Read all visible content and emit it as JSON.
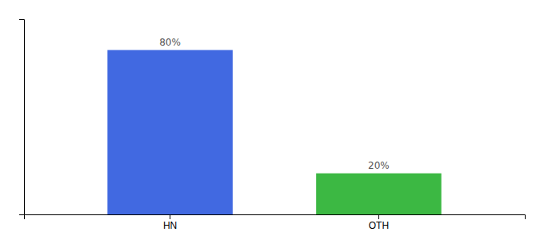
{
  "chart_data": {
    "type": "bar",
    "categories": [
      "HN",
      "OTH"
    ],
    "values": [
      80,
      20
    ],
    "value_labels": [
      "80%",
      "20%"
    ],
    "colors": [
      "#4169e1",
      "#3cb843"
    ],
    "ylim": [
      0,
      95
    ],
    "data_labels": true,
    "tick_labels": "x"
  }
}
